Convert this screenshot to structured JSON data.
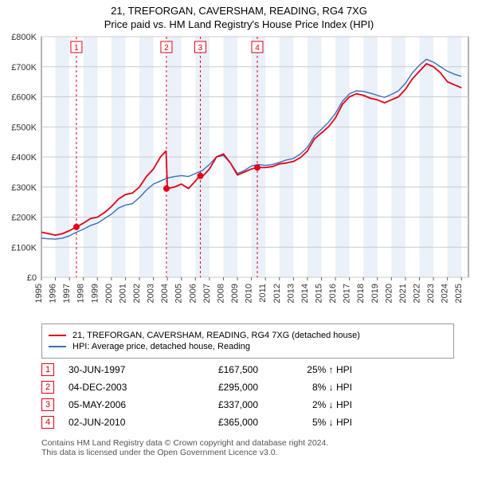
{
  "title_line1": "21, TREFORGAN, CAVERSHAM, READING, RG4 7XG",
  "title_line2": "Price paid vs. HM Land Registry's House Price Index (HPI)",
  "chart": {
    "type": "line",
    "background_color": "#ffffff",
    "grid_color": "#cccccc",
    "band_color": "#eaf1f8",
    "xlim": [
      1995,
      2025.5
    ],
    "ylim": [
      0,
      800000
    ],
    "ytick_step": 100000,
    "ytick_labels": [
      "£0",
      "£100K",
      "£200K",
      "£300K",
      "£400K",
      "£500K",
      "£600K",
      "£700K",
      "£800K"
    ],
    "xticks": [
      1995,
      1996,
      1997,
      1998,
      1999,
      2000,
      2001,
      2002,
      2003,
      2004,
      2005,
      2006,
      2007,
      2008,
      2009,
      2010,
      2011,
      2012,
      2013,
      2014,
      2015,
      2016,
      2017,
      2018,
      2019,
      2020,
      2021,
      2022,
      2023,
      2024,
      2025
    ],
    "series": [
      {
        "name": "21, TREFORGAN, CAVERSHAM, READING, RG4 7XG (detached house)",
        "color": "#e2001a",
        "line_width": 1.8,
        "points": [
          [
            1995.0,
            150000
          ],
          [
            1995.5,
            145000
          ],
          [
            1996.0,
            140000
          ],
          [
            1996.5,
            145000
          ],
          [
            1997.0,
            155000
          ],
          [
            1997.5,
            167500
          ],
          [
            1998.0,
            180000
          ],
          [
            1998.5,
            195000
          ],
          [
            1999.0,
            200000
          ],
          [
            1999.5,
            215000
          ],
          [
            2000.0,
            235000
          ],
          [
            2000.5,
            260000
          ],
          [
            2001.0,
            275000
          ],
          [
            2001.5,
            280000
          ],
          [
            2002.0,
            300000
          ],
          [
            2002.5,
            335000
          ],
          [
            2003.0,
            360000
          ],
          [
            2003.5,
            400000
          ],
          [
            2003.9,
            420000
          ],
          [
            2004.0,
            295000
          ],
          [
            2004.5,
            300000
          ],
          [
            2005.0,
            310000
          ],
          [
            2005.5,
            295000
          ],
          [
            2006.0,
            320000
          ],
          [
            2006.3,
            337000
          ],
          [
            2006.5,
            335000
          ],
          [
            2007.0,
            360000
          ],
          [
            2007.5,
            400000
          ],
          [
            2008.0,
            410000
          ],
          [
            2008.5,
            380000
          ],
          [
            2009.0,
            340000
          ],
          [
            2009.5,
            350000
          ],
          [
            2010.0,
            360000
          ],
          [
            2010.4,
            365000
          ],
          [
            2011.0,
            365000
          ],
          [
            2011.5,
            368000
          ],
          [
            2012.0,
            377000
          ],
          [
            2012.5,
            380000
          ],
          [
            2013.0,
            385000
          ],
          [
            2013.5,
            398000
          ],
          [
            2014.0,
            420000
          ],
          [
            2014.5,
            460000
          ],
          [
            2015.0,
            480000
          ],
          [
            2015.5,
            500000
          ],
          [
            2016.0,
            530000
          ],
          [
            2016.5,
            575000
          ],
          [
            2017.0,
            600000
          ],
          [
            2017.5,
            610000
          ],
          [
            2018.0,
            605000
          ],
          [
            2018.5,
            595000
          ],
          [
            2019.0,
            590000
          ],
          [
            2019.5,
            580000
          ],
          [
            2020.0,
            590000
          ],
          [
            2020.5,
            600000
          ],
          [
            2021.0,
            625000
          ],
          [
            2021.5,
            660000
          ],
          [
            2022.0,
            685000
          ],
          [
            2022.5,
            710000
          ],
          [
            2023.0,
            700000
          ],
          [
            2023.5,
            680000
          ],
          [
            2024.0,
            650000
          ],
          [
            2024.5,
            640000
          ],
          [
            2025.0,
            630000
          ]
        ]
      },
      {
        "name": "HPI: Average price, detached house, Reading",
        "color": "#3b6fb6",
        "line_width": 1.4,
        "points": [
          [
            1995.0,
            130000
          ],
          [
            1995.5,
            128000
          ],
          [
            1996.0,
            127000
          ],
          [
            1996.5,
            130000
          ],
          [
            1997.0,
            138000
          ],
          [
            1997.5,
            150000
          ],
          [
            1998.0,
            160000
          ],
          [
            1998.5,
            172000
          ],
          [
            1999.0,
            180000
          ],
          [
            1999.5,
            195000
          ],
          [
            2000.0,
            210000
          ],
          [
            2000.5,
            230000
          ],
          [
            2001.0,
            240000
          ],
          [
            2001.5,
            245000
          ],
          [
            2002.0,
            265000
          ],
          [
            2002.5,
            290000
          ],
          [
            2003.0,
            310000
          ],
          [
            2003.5,
            320000
          ],
          [
            2004.0,
            330000
          ],
          [
            2004.5,
            335000
          ],
          [
            2005.0,
            338000
          ],
          [
            2005.5,
            335000
          ],
          [
            2006.0,
            345000
          ],
          [
            2006.5,
            355000
          ],
          [
            2007.0,
            375000
          ],
          [
            2007.5,
            400000
          ],
          [
            2008.0,
            405000
          ],
          [
            2008.5,
            380000
          ],
          [
            2009.0,
            345000
          ],
          [
            2009.5,
            355000
          ],
          [
            2010.0,
            370000
          ],
          [
            2010.5,
            375000
          ],
          [
            2011.0,
            372000
          ],
          [
            2011.5,
            375000
          ],
          [
            2012.0,
            382000
          ],
          [
            2012.5,
            390000
          ],
          [
            2013.0,
            395000
          ],
          [
            2013.5,
            410000
          ],
          [
            2014.0,
            432000
          ],
          [
            2014.5,
            470000
          ],
          [
            2015.0,
            492000
          ],
          [
            2015.5,
            515000
          ],
          [
            2016.0,
            545000
          ],
          [
            2016.5,
            585000
          ],
          [
            2017.0,
            610000
          ],
          [
            2017.5,
            620000
          ],
          [
            2018.0,
            618000
          ],
          [
            2018.5,
            612000
          ],
          [
            2019.0,
            605000
          ],
          [
            2019.5,
            598000
          ],
          [
            2020.0,
            608000
          ],
          [
            2020.5,
            620000
          ],
          [
            2021.0,
            645000
          ],
          [
            2021.5,
            680000
          ],
          [
            2022.0,
            705000
          ],
          [
            2022.5,
            725000
          ],
          [
            2023.0,
            715000
          ],
          [
            2023.5,
            700000
          ],
          [
            2024.0,
            685000
          ],
          [
            2024.5,
            675000
          ],
          [
            2025.0,
            668000
          ]
        ]
      }
    ],
    "event_markers": [
      {
        "n": "1",
        "x": 1997.5,
        "y": 167500
      },
      {
        "n": "2",
        "x": 2003.93,
        "y": 295000
      },
      {
        "n": "3",
        "x": 2006.35,
        "y": 337000
      },
      {
        "n": "4",
        "x": 2010.42,
        "y": 365000
      }
    ],
    "event_marker_color": "#e2001a",
    "event_line_dash": "3,3",
    "marker_dot_radius": 4
  },
  "legend": {
    "items": [
      {
        "color": "#e2001a",
        "label": "21, TREFORGAN, CAVERSHAM, READING, RG4 7XG (detached house)"
      },
      {
        "color": "#3b6fb6",
        "label": "HPI: Average price, detached house, Reading"
      }
    ]
  },
  "events_table": {
    "rows": [
      {
        "n": "1",
        "date": "30-JUN-1997",
        "price": "£167,500",
        "delta": "25% ↑ HPI"
      },
      {
        "n": "2",
        "date": "04-DEC-2003",
        "price": "£295,000",
        "delta": "8% ↓ HPI"
      },
      {
        "n": "3",
        "date": "05-MAY-2006",
        "price": "£337,000",
        "delta": "2% ↓ HPI"
      },
      {
        "n": "4",
        "date": "02-JUN-2010",
        "price": "£365,000",
        "delta": "5% ↓ HPI"
      }
    ],
    "marker_border_color": "#e2001a"
  },
  "footer_line1": "Contains HM Land Registry data © Crown copyright and database right 2024.",
  "footer_line2": "This data is licensed under the Open Government Licence v3.0."
}
